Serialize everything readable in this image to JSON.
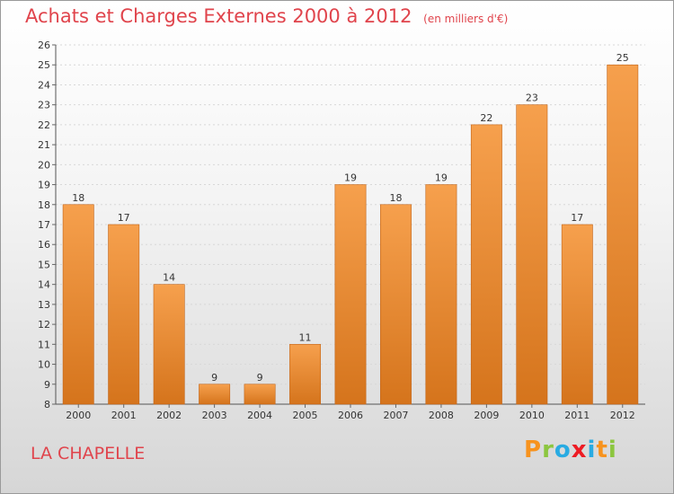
{
  "title": "Achats et Charges Externes 2000 à 2012",
  "units": "(en milliers d'€)",
  "place": "LA CHAPELLE",
  "logo": {
    "letters": [
      "P",
      "r",
      "o",
      "x",
      "i",
      "t",
      "i"
    ],
    "colors": [
      "#f7931e",
      "#8cc63f",
      "#29abe2",
      "#ed1c24",
      "#29abe2",
      "#f7931e",
      "#8cc63f"
    ]
  },
  "colors": {
    "bar_top": "#f6a04d",
    "bar_bottom": "#d5741c",
    "bar_edge": "#c2651a",
    "title": "#e0444c"
  },
  "chart_data": {
    "type": "bar",
    "title": "Achats et Charges Externes 2000 à 2012",
    "subtitle": "(en milliers d'€)",
    "categories": [
      "2000",
      "2001",
      "2002",
      "2003",
      "2004",
      "2005",
      "2006",
      "2007",
      "2008",
      "2009",
      "2010",
      "2011",
      "2012"
    ],
    "values": [
      18,
      17,
      14,
      9,
      9,
      11,
      19,
      18,
      19,
      22,
      23,
      17,
      25
    ],
    "ylim": [
      8,
      26
    ],
    "yticks": [
      8,
      9,
      10,
      11,
      12,
      13,
      14,
      15,
      16,
      17,
      18,
      19,
      20,
      21,
      22,
      23,
      24,
      25,
      26
    ],
    "grid": true,
    "data_labels": true
  }
}
